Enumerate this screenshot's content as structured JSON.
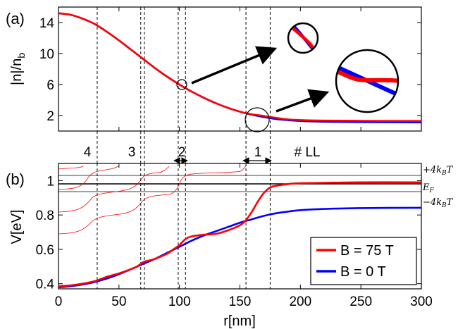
{
  "panel_a": {
    "label": "(a)",
    "ylabel": "|n|/n",
    "ylabel_sub": "b",
    "yticks": [
      "2",
      "6",
      "10",
      "14"
    ],
    "ll_header": "# LL",
    "ll_numbers": [
      "4",
      "3",
      "2",
      "1"
    ]
  },
  "panel_b": {
    "label": "(b)",
    "ylabel": "V[eV]",
    "xlabel": "r[nm]",
    "xticks": [
      "0",
      "50",
      "100",
      "150",
      "200",
      "250",
      "300"
    ],
    "yticks": [
      "0.4",
      "0.6",
      "0.8",
      "1"
    ],
    "right_labels": {
      "plus": "+4k",
      "ef": "E",
      "minus": "−4k"
    },
    "legend": [
      "B = 75 T",
      "B = 0 T"
    ]
  },
  "colors": {
    "b75": "#ff0000",
    "b0": "#0000ff",
    "ll": "#ff0000"
  },
  "chart_data": [
    {
      "type": "line",
      "ylabel": "|n|/n_b",
      "xlim": [
        0,
        300
      ],
      "ylim": [
        0,
        16
      ],
      "series": [
        {
          "name": "B = 75 T",
          "x": [
            0,
            10,
            20,
            30,
            40,
            50,
            60,
            70,
            80,
            90,
            100,
            110,
            120,
            130,
            140,
            150,
            160,
            170,
            180,
            190,
            200,
            220,
            250,
            300
          ],
          "values": [
            15.2,
            15.0,
            14.5,
            13.8,
            12.8,
            11.7,
            10.5,
            9.3,
            8.1,
            7.0,
            6.0,
            5.1,
            4.3,
            3.6,
            3.0,
            2.5,
            2.15,
            1.95,
            1.7,
            1.5,
            1.42,
            1.35,
            1.32,
            1.3
          ]
        },
        {
          "name": "B = 0 T",
          "x": [
            0,
            10,
            20,
            30,
            40,
            50,
            60,
            70,
            80,
            90,
            100,
            110,
            120,
            130,
            140,
            150,
            160,
            170,
            180,
            190,
            200,
            220,
            250,
            300
          ],
          "values": [
            15.2,
            15.0,
            14.5,
            13.8,
            12.8,
            11.7,
            10.5,
            9.3,
            8.1,
            7.0,
            6.0,
            5.1,
            4.3,
            3.6,
            3.0,
            2.5,
            2.1,
            1.8,
            1.55,
            1.4,
            1.3,
            1.2,
            1.15,
            1.12
          ]
        }
      ]
    },
    {
      "type": "line",
      "xlabel": "r[nm]",
      "ylabel": "V[eV]",
      "xlim": [
        0,
        300
      ],
      "ylim": [
        0.37,
        1.1
      ],
      "series": [
        {
          "name": "B = 75 T",
          "x": [
            0,
            10,
            20,
            30,
            40,
            50,
            60,
            65,
            70,
            75,
            80,
            90,
            95,
            100,
            105,
            110,
            120,
            130,
            140,
            150,
            155,
            160,
            165,
            170,
            175,
            180,
            190,
            200,
            250,
            300
          ],
          "values": [
            0.385,
            0.39,
            0.4,
            0.415,
            0.44,
            0.46,
            0.485,
            0.5,
            0.525,
            0.535,
            0.545,
            0.575,
            0.6,
            0.625,
            0.66,
            0.675,
            0.685,
            0.69,
            0.71,
            0.74,
            0.77,
            0.82,
            0.88,
            0.93,
            0.96,
            0.97,
            0.98,
            0.985,
            0.99,
            0.99
          ]
        },
        {
          "name": "B = 0 T",
          "x": [
            0,
            10,
            20,
            30,
            40,
            50,
            60,
            70,
            80,
            90,
            100,
            110,
            120,
            130,
            140,
            150,
            160,
            170,
            180,
            190,
            200,
            220,
            250,
            300
          ],
          "values": [
            0.38,
            0.385,
            0.395,
            0.41,
            0.43,
            0.455,
            0.485,
            0.515,
            0.545,
            0.58,
            0.615,
            0.65,
            0.68,
            0.705,
            0.73,
            0.755,
            0.775,
            0.795,
            0.81,
            0.82,
            0.828,
            0.835,
            0.84,
            0.842
          ]
        }
      ]
    }
  ]
}
